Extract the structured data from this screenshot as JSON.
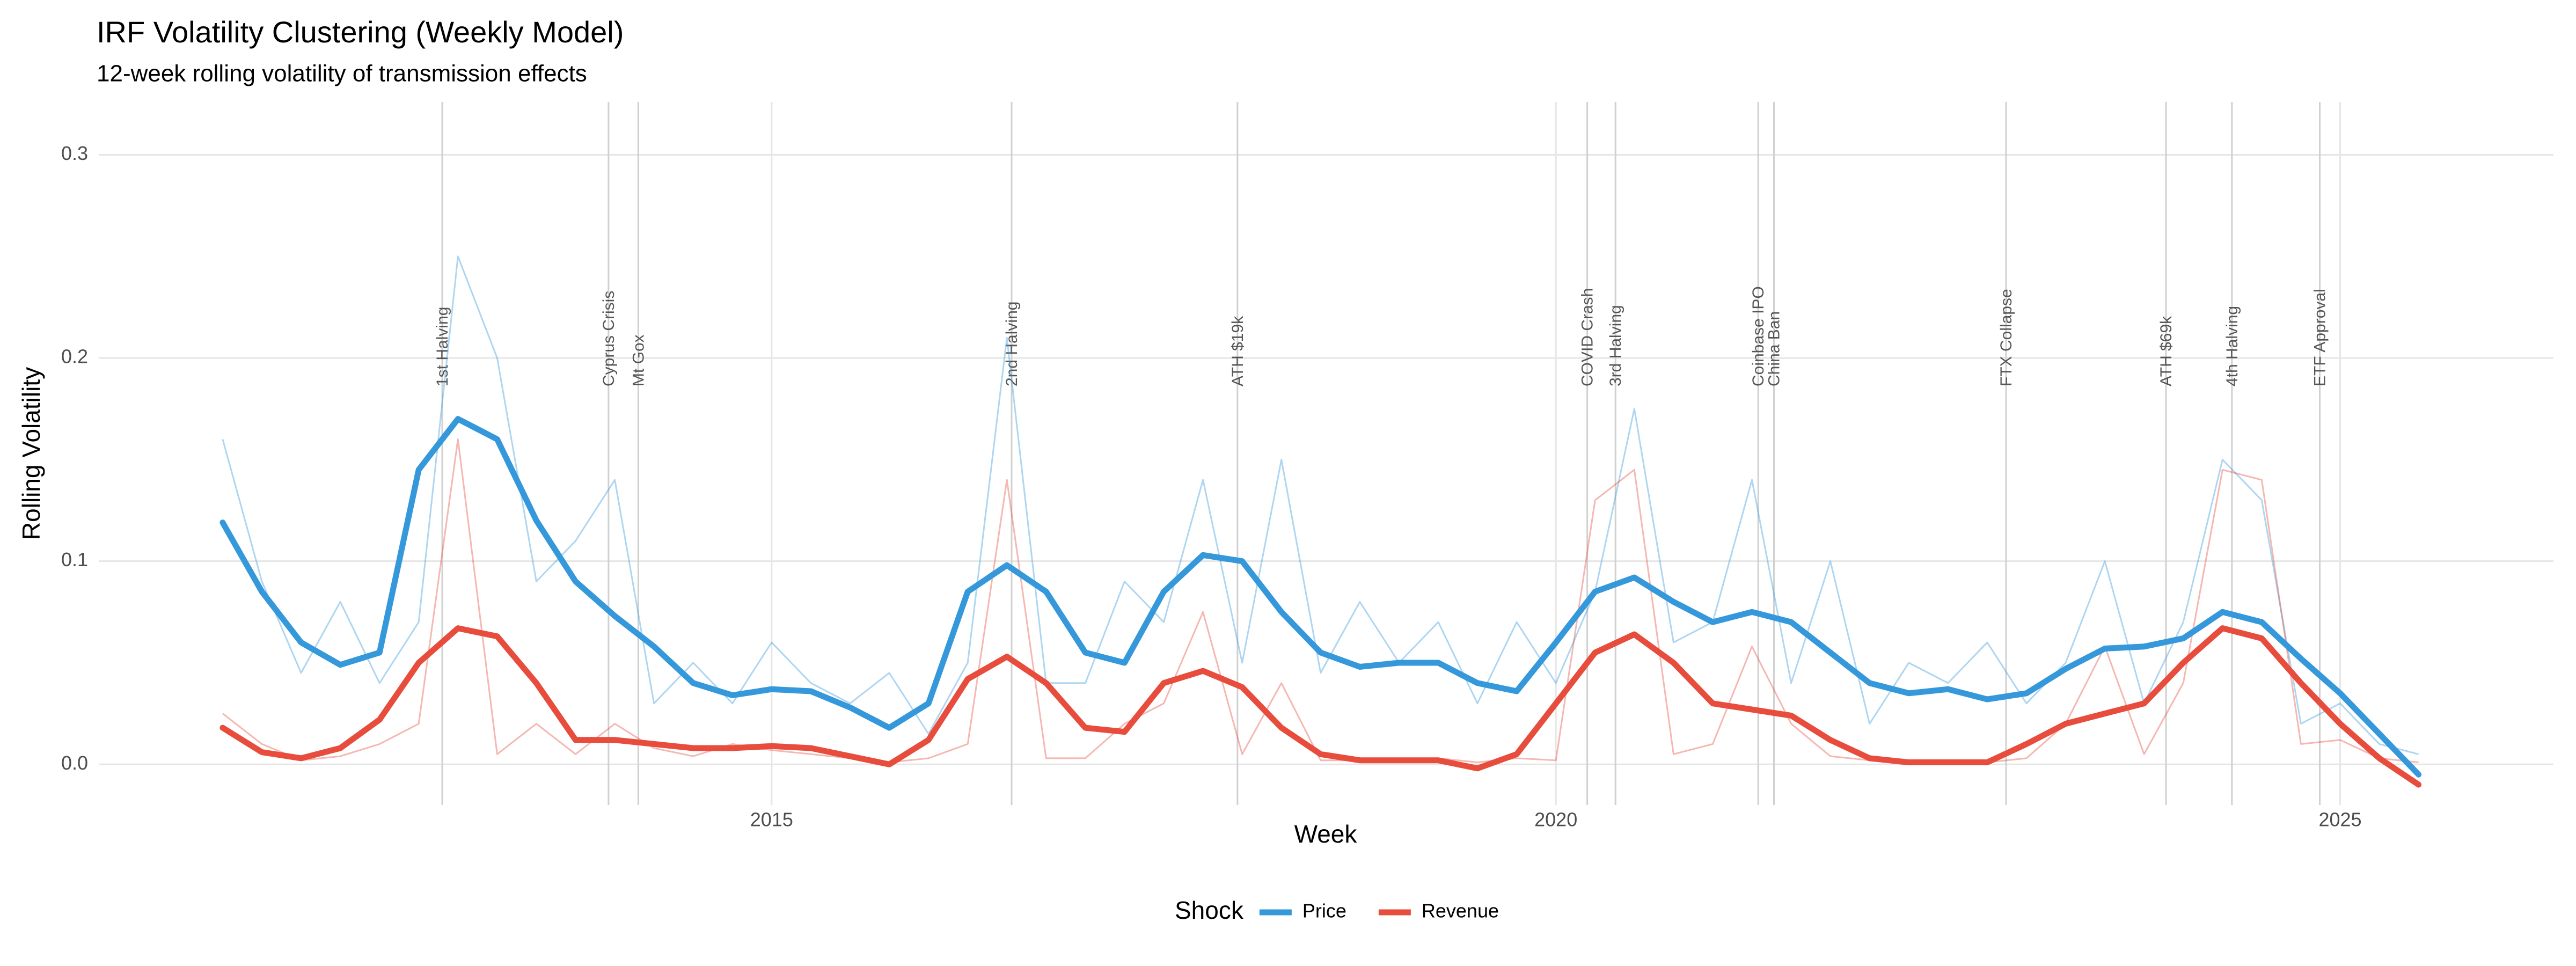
{
  "chart_data": {
    "type": "line",
    "title": "IRF Volatility Clustering (Weekly Model)",
    "subtitle": "12-week rolling volatility of transmission effects",
    "x_label": "Week",
    "y_label": "Rolling Volatility",
    "x": [
      2011.5,
      2011.75,
      2012,
      2012.25,
      2012.5,
      2012.75,
      2013,
      2013.25,
      2013.5,
      2013.75,
      2014,
      2014.25,
      2014.5,
      2014.75,
      2015,
      2015.25,
      2015.5,
      2015.75,
      2016,
      2016.25,
      2016.5,
      2016.75,
      2017,
      2017.25,
      2017.5,
      2017.75,
      2018,
      2018.25,
      2018.5,
      2018.75,
      2019,
      2019.25,
      2019.5,
      2019.75,
      2020,
      2020.25,
      2020.5,
      2020.75,
      2021,
      2021.25,
      2021.5,
      2021.75,
      2022,
      2022.25,
      2022.5,
      2022.75,
      2023,
      2023.25,
      2023.5,
      2023.75,
      2024,
      2024.25,
      2024.5,
      2024.75,
      2025,
      2025.25,
      2025.5
    ],
    "series": [
      {
        "name": "Price",
        "color": "#3498db",
        "values": [
          0.119,
          0.085,
          0.06,
          0.049,
          0.055,
          0.145,
          0.17,
          0.16,
          0.12,
          0.09,
          0.073,
          0.058,
          0.04,
          0.034,
          0.037,
          0.036,
          0.028,
          0.018,
          0.03,
          0.085,
          0.098,
          0.085,
          0.055,
          0.05,
          0.085,
          0.103,
          0.1,
          0.075,
          0.055,
          0.048,
          0.05,
          0.05,
          0.04,
          0.036,
          0.06,
          0.085,
          0.092,
          0.08,
          0.07,
          0.075,
          0.07,
          0.055,
          0.04,
          0.035,
          0.037,
          0.032,
          0.035,
          0.047,
          0.057,
          0.058,
          0.062,
          0.075,
          0.07,
          0.052,
          0.035,
          0.015,
          -0.005
        ],
        "raw": [
          0.16,
          0.09,
          0.045,
          0.08,
          0.04,
          0.07,
          0.25,
          0.2,
          0.09,
          0.11,
          0.14,
          0.03,
          0.05,
          0.03,
          0.06,
          0.04,
          0.03,
          0.045,
          0.015,
          0.05,
          0.21,
          0.04,
          0.04,
          0.09,
          0.07,
          0.14,
          0.05,
          0.15,
          0.045,
          0.08,
          0.05,
          0.07,
          0.03,
          0.07,
          0.04,
          0.085,
          0.175,
          0.06,
          0.07,
          0.14,
          0.04,
          0.1,
          0.02,
          0.05,
          0.04,
          0.06,
          0.03,
          0.05,
          0.1,
          0.03,
          0.07,
          0.15,
          0.13,
          0.02,
          0.03,
          0.01,
          0.005
        ]
      },
      {
        "name": "Revenue",
        "color": "#e74c3c",
        "values": [
          0.018,
          0.006,
          0.003,
          0.008,
          0.022,
          0.05,
          0.067,
          0.063,
          0.04,
          0.012,
          0.012,
          0.01,
          0.008,
          0.008,
          0.009,
          0.008,
          0.004,
          0,
          0.012,
          0.042,
          0.053,
          0.04,
          0.018,
          0.016,
          0.04,
          0.046,
          0.038,
          0.018,
          0.005,
          0.002,
          0.002,
          0.002,
          -0.002,
          0.005,
          0.03,
          0.055,
          0.064,
          0.05,
          0.03,
          0.027,
          0.024,
          0.012,
          0.003,
          0.001,
          0.001,
          0.001,
          0.01,
          0.02,
          0.025,
          0.03,
          0.05,
          0.067,
          0.062,
          0.04,
          0.02,
          0.003,
          -0.01
        ],
        "raw": [
          0.025,
          0.01,
          0.002,
          0.004,
          0.01,
          0.02,
          0.16,
          0.005,
          0.02,
          0.005,
          0.02,
          0.008,
          0.004,
          0.01,
          0.007,
          0.005,
          0.003,
          0.001,
          0.003,
          0.01,
          0.14,
          0.003,
          0.003,
          0.02,
          0.03,
          0.075,
          0.005,
          0.04,
          0.002,
          0.002,
          0.001,
          0.003,
          0.001,
          0.003,
          0.002,
          0.13,
          0.145,
          0.005,
          0.01,
          0.058,
          0.02,
          0.004,
          0.002,
          0.001,
          0.002,
          0.001,
          0.003,
          0.02,
          0.058,
          0.005,
          0.04,
          0.145,
          0.14,
          0.01,
          0.012,
          0.003,
          0.001
        ]
      }
    ],
    "events": [
      {
        "label": "1st Halving",
        "x": 2012.9
      },
      {
        "label": "Cyprus Crisis",
        "x": 2013.96
      },
      {
        "label": "Mt Gox",
        "x": 2014.15
      },
      {
        "label": "2nd Halving",
        "x": 2016.53
      },
      {
        "label": "ATH $19k",
        "x": 2017.97
      },
      {
        "label": "COVID Crash",
        "x": 2020.2
      },
      {
        "label": "3rd Halving",
        "x": 2020.38
      },
      {
        "label": "Coinbase IPO",
        "x": 2021.29
      },
      {
        "label": "China Ban",
        "x": 2021.39
      },
      {
        "label": "FTX Collapse",
        "x": 2022.87
      },
      {
        "label": "ATH $69k",
        "x": 2023.89
      },
      {
        "label": "4th Halving",
        "x": 2024.31
      },
      {
        "label": "ETF Approval",
        "x": 2024.87
      }
    ],
    "xlim": [
      2010.71,
      2026.36
    ],
    "ylim": [
      -0.02,
      0.326
    ],
    "xticks": [
      2015,
      2020,
      2025
    ],
    "yticks": [
      {
        "value": 0,
        "label": "0.0"
      },
      {
        "value": 0.1,
        "label": "0.1"
      },
      {
        "value": 0.2,
        "label": "0.2"
      },
      {
        "value": 0.3,
        "label": "0.3"
      }
    ],
    "grid": true,
    "legend_title": "Shock",
    "legend_position": "bottom"
  }
}
